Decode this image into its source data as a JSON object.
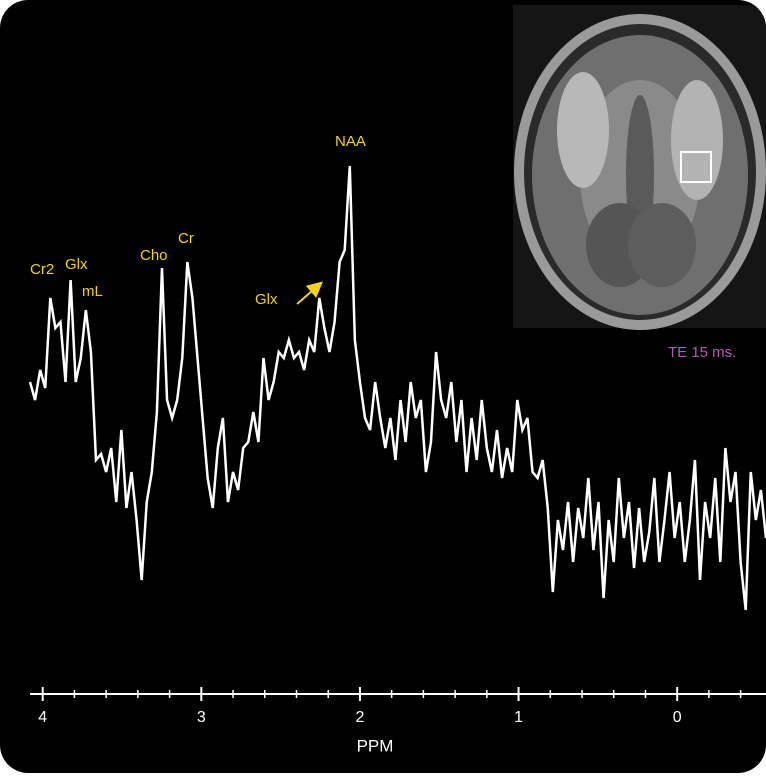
{
  "chart_data": {
    "type": "line",
    "xlabel": "PPM",
    "xlim": [
      4.08,
      -0.56
    ],
    "xticks": [
      4,
      3,
      2,
      1,
      0
    ],
    "xminorticks": [
      3.8,
      3.6,
      3.4,
      3.2,
      2.8,
      2.6,
      2.4,
      2.2,
      1.8,
      1.6,
      1.4,
      1.2,
      0.8,
      0.6,
      0.4,
      0.2,
      -0.2,
      -0.4
    ],
    "ylim": [
      0,
      100
    ],
    "color": "#ffffff",
    "annotations": [
      "Cr2",
      "Glx",
      "mL",
      "Cho",
      "Cr",
      "Glx",
      "NAA",
      "TE 15 ms."
    ],
    "x": [
      4.08,
      4.048,
      4.016,
      3.984,
      3.952,
      3.92,
      3.888,
      3.856,
      3.824,
      3.792,
      3.76,
      3.728,
      3.696,
      3.664,
      3.632,
      3.6,
      3.568,
      3.536,
      3.504,
      3.472,
      3.44,
      3.408,
      3.376,
      3.344,
      3.312,
      3.28,
      3.248,
      3.216,
      3.184,
      3.152,
      3.12,
      3.088,
      3.056,
      3.024,
      2.992,
      2.96,
      2.928,
      2.896,
      2.864,
      2.832,
      2.8,
      2.768,
      2.736,
      2.704,
      2.672,
      2.64,
      2.608,
      2.576,
      2.544,
      2.512,
      2.48,
      2.448,
      2.416,
      2.384,
      2.352,
      2.32,
      2.288,
      2.256,
      2.224,
      2.192,
      2.16,
      2.128,
      2.096,
      2.064,
      2.032,
      2,
      1.968,
      1.936,
      1.904,
      1.872,
      1.84,
      1.808,
      1.776,
      1.744,
      1.712,
      1.68,
      1.648,
      1.616,
      1.584,
      1.552,
      1.52,
      1.488,
      1.456,
      1.424,
      1.392,
      1.36,
      1.328,
      1.296,
      1.264,
      1.232,
      1.2,
      1.168,
      1.136,
      1.104,
      1.072,
      1.04,
      1.008,
      0.976,
      0.944,
      0.912,
      0.88,
      0.848,
      0.816,
      0.784,
      0.752,
      0.72,
      0.688,
      0.656,
      0.624,
      0.592,
      0.56,
      0.528,
      0.496,
      0.464,
      0.432,
      0.4,
      0.368,
      0.336,
      0.304,
      0.272,
      0.24,
      0.208,
      0.176,
      0.144,
      0.112,
      0.08,
      0.048,
      0.016,
      -0.016,
      -0.048,
      -0.08,
      -0.112,
      -0.144,
      -0.176,
      -0.208,
      -0.24,
      -0.272,
      -0.304,
      -0.336,
      -0.368,
      -0.4,
      -0.432,
      -0.464,
      -0.496,
      -0.528,
      -0.56
    ],
    "values": [
      53,
      50,
      55,
      52,
      67,
      62,
      63,
      53,
      70,
      53,
      57,
      65,
      58,
      40,
      41,
      38,
      42,
      33,
      45,
      32,
      38,
      30,
      20,
      33,
      38,
      48,
      72,
      50,
      47,
      50,
      57,
      73,
      67,
      57,
      47,
      37,
      32,
      42,
      47,
      33,
      38,
      35,
      42,
      43,
      48,
      43,
      57,
      50,
      53,
      58,
      57,
      60,
      57,
      58,
      55,
      60,
      58,
      67,
      62,
      58,
      63,
      73,
      75,
      89,
      60,
      53,
      47,
      45,
      53,
      47,
      42,
      47,
      40,
      50,
      43,
      53,
      47,
      50,
      38,
      43,
      58,
      50,
      47,
      53,
      43,
      50,
      38,
      47,
      40,
      50,
      42,
      38,
      45,
      37,
      42,
      38,
      50,
      45,
      47,
      38,
      37,
      40,
      32,
      18,
      30,
      25,
      33,
      23,
      32,
      27,
      37,
      25,
      33,
      17,
      30,
      23,
      37,
      27,
      33,
      22,
      32,
      23,
      28,
      37,
      23,
      30,
      38,
      27,
      33,
      23,
      30,
      40,
      20,
      33,
      27,
      37,
      23,
      42,
      33,
      38,
      23,
      15,
      38,
      30,
      35,
      27
    ]
  }
}
